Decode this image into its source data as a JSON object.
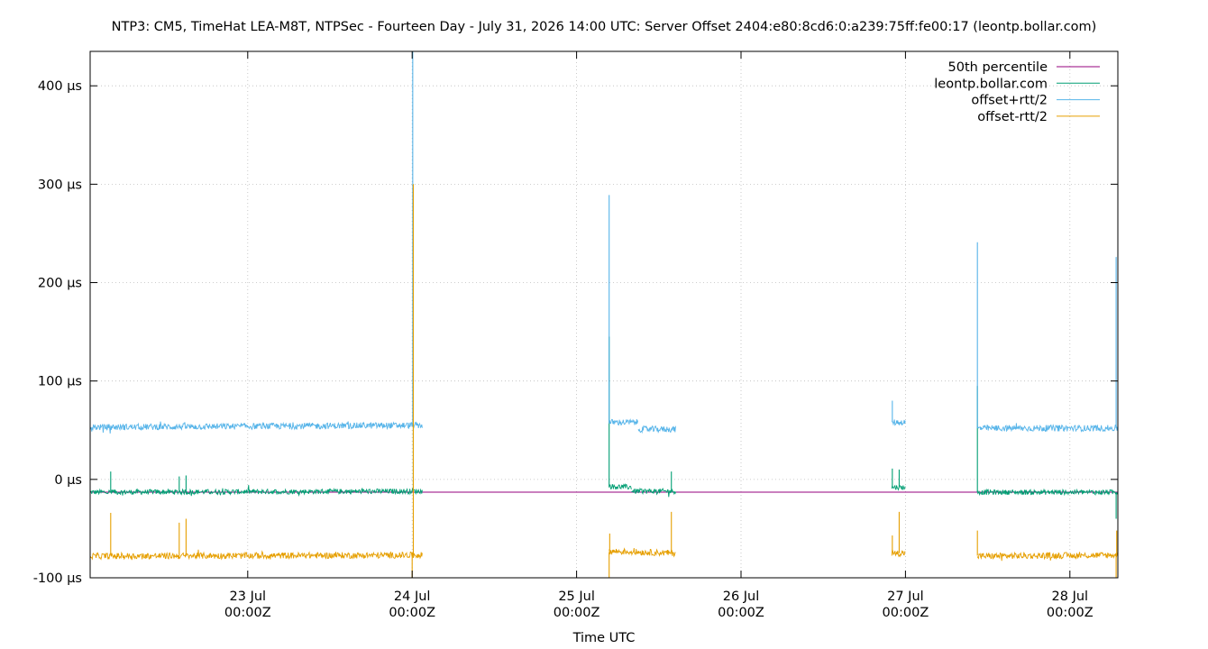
{
  "chart_data": {
    "type": "line",
    "title": "NTP3: CM5, TimeHat LEA-M8T, NTPSec - Fourteen Day - July 31, 2026 14:00 UTC: Server Offset 2404:e80:8cd6:0:a239:75ff:fe00:17 (leontp.bollar.com)",
    "xlabel": "Time UTC",
    "ylabel": "",
    "x_unit": "days",
    "xlim": [
      "2026-07-22T01:00Z",
      "2026-07-28T07:00Z"
    ],
    "ylim": [
      -100,
      435
    ],
    "grid": true,
    "legend_position": "top-right",
    "x_ticks": [
      {
        "x": "2026-07-23T00:00Z",
        "label_day": "23 Jul",
        "label_time": "00:00Z"
      },
      {
        "x": "2026-07-24T00:00Z",
        "label_day": "24 Jul",
        "label_time": "00:00Z"
      },
      {
        "x": "2026-07-25T00:00Z",
        "label_day": "25 Jul",
        "label_time": "00:00Z"
      },
      {
        "x": "2026-07-26T00:00Z",
        "label_day": "26 Jul",
        "label_time": "00:00Z"
      },
      {
        "x": "2026-07-27T00:00Z",
        "label_day": "27 Jul",
        "label_time": "00:00Z"
      },
      {
        "x": "2026-07-28T00:00Z",
        "label_day": "28 Jul",
        "label_time": "00:00Z"
      }
    ],
    "y_ticks": [
      {
        "y": 400,
        "label": "400 µs"
      },
      {
        "y": 300,
        "label": "300 µs"
      },
      {
        "y": 200,
        "label": "200 µs"
      },
      {
        "y": 100,
        "label": "100 µs"
      },
      {
        "y": 0,
        "label": "0 µs"
      },
      {
        "y": -100,
        "label": "-100 µs"
      }
    ],
    "series": [
      {
        "name": "50th percentile",
        "color": "#94007e",
        "x": [
          "2026-07-22T01:00Z",
          "2026-07-28T07:00Z"
        ],
        "y": [
          -13,
          -13
        ]
      },
      {
        "name": "leontp.bollar.com",
        "color": "#009e73",
        "segments": [
          {
            "x": [
              "2026-07-22T01:00Z",
              "2026-07-24T01:30Z"
            ],
            "y": [
              -13,
              -12
            ],
            "spikes": [
              {
                "x": "2026-07-22T04:00Z",
                "y": 8
              },
              {
                "x": "2026-07-22T14:00Z",
                "y": 3
              },
              {
                "x": "2026-07-22T15:00Z",
                "y": 4
              },
              {
                "x": "2026-07-24T00:10Z",
                "y": 300
              }
            ]
          },
          {
            "x": [
              "2026-07-25T04:45Z",
              "2026-07-25T08:00Z"
            ],
            "y": [
              -7,
              -8
            ],
            "spikes": [
              {
                "x": "2026-07-25T04:45Z",
                "y": 145
              }
            ]
          },
          {
            "x": [
              "2026-07-25T08:00Z",
              "2026-07-25T14:30Z"
            ],
            "y": [
              -12,
              -12
            ],
            "spikes": [
              {
                "x": "2026-07-25T13:50Z",
                "y": 8
              }
            ]
          },
          {
            "x": [
              "2026-07-26T22:00Z",
              "2026-07-27T00:00Z"
            ],
            "y": [
              -8,
              -8
            ],
            "spikes": [
              {
                "x": "2026-07-26T22:05Z",
                "y": 11
              },
              {
                "x": "2026-07-26T23:05Z",
                "y": 10
              }
            ]
          },
          {
            "x": [
              "2026-07-27T10:30Z",
              "2026-07-28T07:00Z"
            ],
            "y": [
              -13,
              -13
            ],
            "spikes": [
              {
                "x": "2026-07-27T10:30Z",
                "y": 95
              },
              {
                "x": "2026-07-28T06:45Z",
                "y": -40
              }
            ]
          }
        ]
      },
      {
        "name": "offset+rtt/2",
        "color": "#56b4e9",
        "segments": [
          {
            "x": [
              "2026-07-22T01:00Z",
              "2026-07-24T01:30Z"
            ],
            "y": [
              53,
              55
            ],
            "spikes": [
              {
                "x": "2026-07-24T00:05Z",
                "y": 435
              }
            ]
          },
          {
            "x": [
              "2026-07-25T04:45Z",
              "2026-07-25T09:00Z"
            ],
            "y": [
              58,
              58
            ],
            "spikes": [
              {
                "x": "2026-07-25T04:45Z",
                "y": 289
              }
            ]
          },
          {
            "x": [
              "2026-07-25T09:00Z",
              "2026-07-25T14:30Z"
            ],
            "y": [
              51,
              51
            ],
            "spikes": []
          },
          {
            "x": [
              "2026-07-26T22:00Z",
              "2026-07-27T00:00Z"
            ],
            "y": [
              58,
              58
            ],
            "spikes": [
              {
                "x": "2026-07-26T22:05Z",
                "y": 80
              }
            ]
          },
          {
            "x": [
              "2026-07-27T10:30Z",
              "2026-07-28T07:00Z"
            ],
            "y": [
              52,
              52
            ],
            "spikes": [
              {
                "x": "2026-07-27T10:30Z",
                "y": 241
              },
              {
                "x": "2026-07-28T06:45Z",
                "y": 226
              }
            ]
          }
        ]
      },
      {
        "name": "offset-rtt/2",
        "color": "#e69f00",
        "segments": [
          {
            "x": [
              "2026-07-22T01:00Z",
              "2026-07-24T01:30Z"
            ],
            "y": [
              -78,
              -77
            ],
            "spikes": [
              {
                "x": "2026-07-22T04:00Z",
                "y": -34
              },
              {
                "x": "2026-07-22T14:00Z",
                "y": -44
              },
              {
                "x": "2026-07-22T15:00Z",
                "y": -40
              },
              {
                "x": "2026-07-24T00:10Z",
                "y": 300
              },
              {
                "x": "2026-07-24T00:00Z",
                "y": -100
              }
            ]
          },
          {
            "x": [
              "2026-07-25T04:45Z",
              "2026-07-25T14:30Z"
            ],
            "y": [
              -73,
              -75
            ],
            "spikes": [
              {
                "x": "2026-07-25T04:45Z",
                "y": -100
              },
              {
                "x": "2026-07-25T04:50Z",
                "y": -55
              },
              {
                "x": "2026-07-25T13:50Z",
                "y": -33
              }
            ]
          },
          {
            "x": [
              "2026-07-26T22:00Z",
              "2026-07-27T00:00Z"
            ],
            "y": [
              -75,
              -75
            ],
            "spikes": [
              {
                "x": "2026-07-26T22:05Z",
                "y": -57
              },
              {
                "x": "2026-07-26T23:05Z",
                "y": -33
              }
            ]
          },
          {
            "x": [
              "2026-07-27T10:30Z",
              "2026-07-28T07:00Z"
            ],
            "y": [
              -78,
              -77
            ],
            "spikes": [
              {
                "x": "2026-07-27T10:30Z",
                "y": -52
              },
              {
                "x": "2026-07-28T06:45Z",
                "y": -100
              },
              {
                "x": "2026-07-28T06:50Z",
                "y": -52
              }
            ]
          }
        ]
      }
    ]
  }
}
